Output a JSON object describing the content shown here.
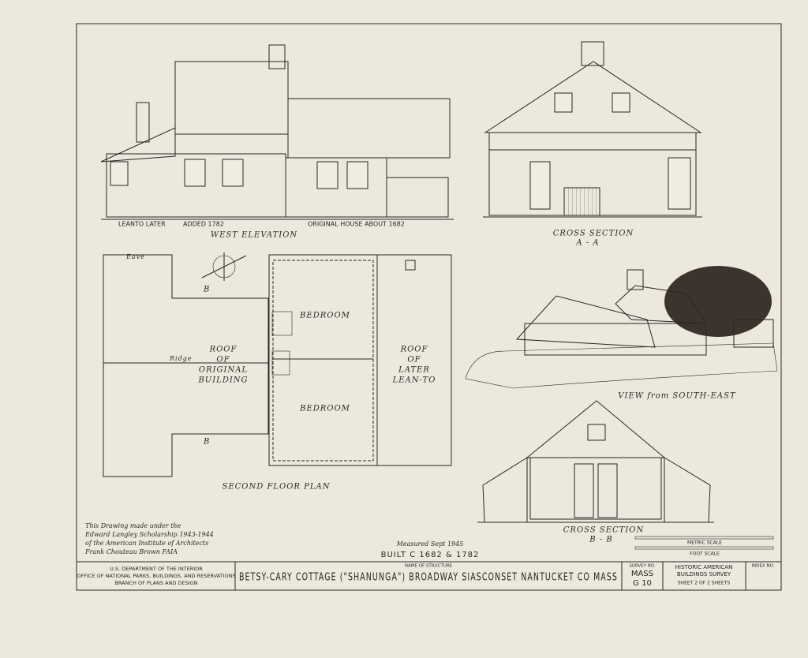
{
  "west_elevation": {
    "title": "WEST ELEVATION",
    "labels": [
      "LEANTO LATER",
      "ADDED 1782",
      "ORIGINAL HOUSE ABOUT 1682"
    ]
  },
  "cross_section_a": {
    "title": "CROSS SECTION",
    "subtitle": "A - A"
  },
  "second_floor_plan": {
    "title": "SECOND FLOOR PLAN",
    "rooms": [
      "BEDROOM",
      "BEDROOM"
    ],
    "roof_original": [
      "ROOF",
      "OF",
      "ORIGINAL",
      "BUILDING"
    ],
    "roof_leanto": [
      "ROOF",
      "OF",
      "LATER",
      "LEAN-TO"
    ],
    "ridge": "Ridge",
    "eave": "Eave",
    "section_mark": "B"
  },
  "view": {
    "title": "VIEW from SOUTH-EAST"
  },
  "cross_section_b": {
    "title": "CROSS SECTION",
    "subtitle": "B - B"
  },
  "scale": {
    "metric": "METRIC SCALE",
    "foot": "FOOT SCALE"
  },
  "credits": {
    "lines": [
      "This Drawing made under the",
      "Edward Langley Scholarship 1943-1944",
      "of the American Institute of Architects",
      "Frank Chouteau Brown FAIA"
    ],
    "measured": "Measured Sept 1945",
    "built": "BUILT C 1682 & 1782"
  },
  "title_block": {
    "agency": [
      "U.S. DEPARTMENT OF THE INTERIOR",
      "OFFICE OF NATIONAL PARKS, BUILDINGS, AND RESERVATIONS",
      "BRANCH OF PLANS AND DESIGN"
    ],
    "name_label": "NAME OF STRUCTURE",
    "name": "BETSY-CARY COTTAGE (\"SHANUNGA\") BROADWAY SIASCONSET NANTUCKET CO MASS",
    "survey_label": "SURVEY NO.",
    "survey": [
      "MASS",
      "G 10"
    ],
    "habs": [
      "HISTORIC AMERICAN",
      "BUILDINGS SURVEY"
    ],
    "sheet": "SHEET 2 OF 2 SHEETS",
    "index_label": "INDEX NO."
  }
}
